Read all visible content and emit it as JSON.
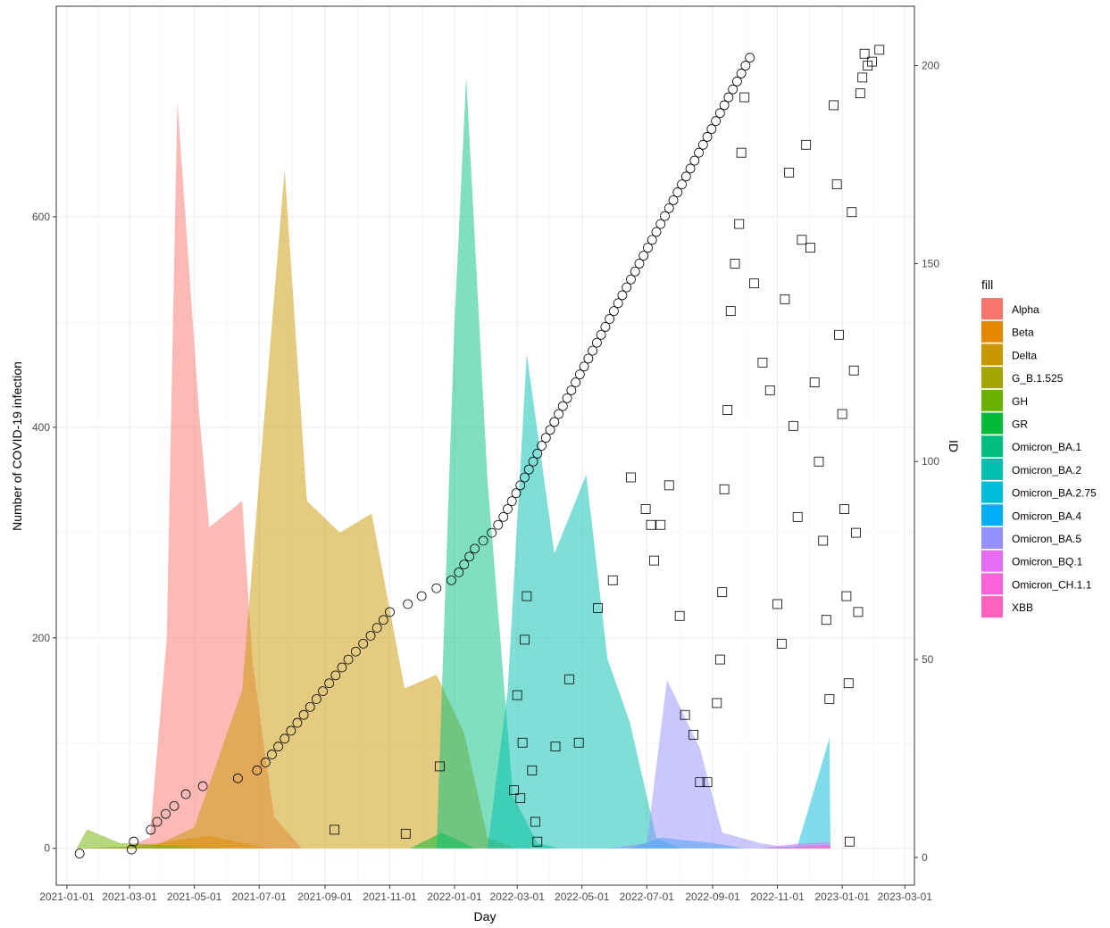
{
  "chart_data": {
    "type": "area",
    "xlabel": "Day",
    "ylabel": "Number of COVID-19 infection",
    "y2label": "ID",
    "xlim": [
      "2020-12-22",
      "2023-03-10"
    ],
    "ylim": [
      -35,
      800
    ],
    "y2lim": [
      -7,
      215
    ],
    "x_ticks": [
      "2021-01-01",
      "2021-03-01",
      "2021-05-01",
      "2021-07-01",
      "2021-09-01",
      "2021-11-01",
      "2022-01-01",
      "2022-03-01",
      "2022-05-01",
      "2022-07-01",
      "2022-09-01",
      "2022-11-01",
      "2023-01-01",
      "2023-03-01"
    ],
    "y_ticks": [
      0,
      200,
      400,
      600
    ],
    "y2_ticks": [
      0,
      50,
      100,
      150,
      200
    ],
    "grid": true,
    "legend": {
      "title": "fill",
      "position": "right"
    },
    "series": [
      {
        "name": "Alpha",
        "color": "#F8766D",
        "points": [
          [
            "2021-01-10",
            0
          ],
          [
            "2021-02-25",
            1
          ],
          [
            "2021-03-20",
            10
          ],
          [
            "2021-04-05",
            200
          ],
          [
            "2021-04-15",
            710
          ],
          [
            "2021-05-05",
            420
          ],
          [
            "2021-05-15",
            305
          ],
          [
            "2021-06-15",
            330
          ],
          [
            "2021-06-25",
            175
          ],
          [
            "2021-07-15",
            30
          ],
          [
            "2021-08-10",
            0
          ]
        ]
      },
      {
        "name": "Beta",
        "color": "#E58700",
        "points": [
          [
            "2021-01-10",
            0
          ],
          [
            "2021-03-10",
            2
          ],
          [
            "2021-04-15",
            8
          ],
          [
            "2021-05-15",
            12
          ],
          [
            "2021-06-15",
            5
          ],
          [
            "2021-07-10",
            0
          ]
        ]
      },
      {
        "name": "Delta",
        "color": "#C99800",
        "points": [
          [
            "2021-03-20",
            0
          ],
          [
            "2021-05-01",
            20
          ],
          [
            "2021-06-15",
            150
          ],
          [
            "2021-07-01",
            350
          ],
          [
            "2021-07-25",
            645
          ],
          [
            "2021-08-15",
            330
          ],
          [
            "2021-09-15",
            300
          ],
          [
            "2021-10-15",
            318
          ],
          [
            "2021-11-15",
            152
          ],
          [
            "2021-12-15",
            165
          ],
          [
            "2022-01-10",
            110
          ],
          [
            "2022-02-01",
            10
          ],
          [
            "2022-03-01",
            0
          ]
        ]
      },
      {
        "name": "G_B.1.525",
        "color": "#A3A500",
        "points": [
          [
            "2021-01-20",
            0
          ],
          [
            "2021-02-20",
            1
          ],
          [
            "2021-04-10",
            3
          ],
          [
            "2021-06-01",
            0
          ]
        ]
      },
      {
        "name": "GH",
        "color": "#6BB100",
        "points": [
          [
            "2021-01-10",
            0
          ],
          [
            "2021-01-20",
            18
          ],
          [
            "2021-02-20",
            5
          ],
          [
            "2021-03-20",
            4
          ],
          [
            "2021-05-01",
            0
          ]
        ]
      },
      {
        "name": "GR",
        "color": "#00BA38",
        "points": [
          [
            "2021-11-20",
            0
          ],
          [
            "2021-12-20",
            15
          ],
          [
            "2022-01-20",
            0
          ]
        ]
      },
      {
        "name": "Omicron_BA.1",
        "color": "#00BF7D",
        "points": [
          [
            "2021-12-15",
            0
          ],
          [
            "2022-01-01",
            500
          ],
          [
            "2022-01-12",
            733
          ],
          [
            "2022-02-01",
            350
          ],
          [
            "2022-02-25",
            50
          ],
          [
            "2022-03-20",
            5
          ],
          [
            "2022-04-10",
            0
          ]
        ]
      },
      {
        "name": "Omicron_BA.2",
        "color": "#00C0AF",
        "points": [
          [
            "2022-02-01",
            0
          ],
          [
            "2022-02-20",
            150
          ],
          [
            "2022-03-10",
            470
          ],
          [
            "2022-04-05",
            280
          ],
          [
            "2022-05-05",
            355
          ],
          [
            "2022-05-25",
            180
          ],
          [
            "2022-06-15",
            120
          ],
          [
            "2022-07-10",
            10
          ],
          [
            "2022-08-01",
            0
          ]
        ]
      },
      {
        "name": "Omicron_BA.2.75",
        "color": "#00BCD8",
        "points": [
          [
            "2022-10-20",
            0
          ],
          [
            "2022-11-20",
            3
          ],
          [
            "2022-12-20",
            105
          ],
          [
            "2022-12-21",
            0
          ]
        ]
      },
      {
        "name": "Omicron_BA.4",
        "color": "#00B0F6",
        "points": [
          [
            "2022-06-15",
            0
          ],
          [
            "2022-07-15",
            10
          ],
          [
            "2022-09-01",
            5
          ],
          [
            "2022-10-01",
            0
          ]
        ]
      },
      {
        "name": "Omicron_BA.5",
        "color": "#9590FF",
        "points": [
          [
            "2022-05-25",
            0
          ],
          [
            "2022-07-01",
            5
          ],
          [
            "2022-07-20",
            160
          ],
          [
            "2022-08-20",
            95
          ],
          [
            "2022-09-10",
            15
          ],
          [
            "2022-10-15",
            5
          ],
          [
            "2022-11-15",
            0
          ]
        ]
      },
      {
        "name": "Omicron_BQ.1",
        "color": "#E76BF3",
        "points": [
          [
            "2022-10-15",
            0
          ],
          [
            "2022-11-15",
            4
          ],
          [
            "2022-12-20",
            6
          ],
          [
            "2022-12-21",
            0
          ]
        ]
      },
      {
        "name": "Omicron_CH.1.1",
        "color": "#FA62DB",
        "points": [
          [
            "2022-11-01",
            0
          ],
          [
            "2022-12-01",
            2
          ],
          [
            "2022-12-20",
            3
          ],
          [
            "2022-12-21",
            0
          ]
        ]
      },
      {
        "name": "XBB",
        "color": "#FF62BC",
        "points": [
          [
            "2022-11-01",
            0
          ],
          [
            "2022-12-01",
            2
          ],
          [
            "2022-12-20",
            2
          ],
          [
            "2022-12-21",
            0
          ]
        ]
      }
    ],
    "cumulative_markers": {
      "shape": "circle",
      "axis": "ID",
      "points": [
        [
          "2021-01-13",
          1
        ],
        [
          "2021-03-03",
          2
        ],
        [
          "2021-03-05",
          4
        ],
        [
          "2021-03-21",
          7
        ],
        [
          "2021-03-27",
          9
        ],
        [
          "2021-04-04",
          11
        ],
        [
          "2021-04-12",
          13
        ],
        [
          "2021-04-23",
          16
        ],
        [
          "2021-05-09",
          18
        ],
        [
          "2021-06-11",
          20
        ],
        [
          "2021-06-29",
          22
        ],
        [
          "2021-07-07",
          24
        ],
        [
          "2021-07-13",
          26
        ],
        [
          "2021-07-19",
          28
        ],
        [
          "2021-07-25",
          30
        ],
        [
          "2021-07-31",
          32
        ],
        [
          "2021-08-06",
          34
        ],
        [
          "2021-08-12",
          36
        ],
        [
          "2021-08-18",
          38
        ],
        [
          "2021-08-24",
          40
        ],
        [
          "2021-08-30",
          42
        ],
        [
          "2021-09-05",
          44
        ],
        [
          "2021-09-11",
          46
        ],
        [
          "2021-09-17",
          48
        ],
        [
          "2021-09-23",
          50
        ],
        [
          "2021-09-30",
          52
        ],
        [
          "2021-10-07",
          54
        ],
        [
          "2021-10-14",
          56
        ],
        [
          "2021-10-20",
          58
        ],
        [
          "2021-10-26",
          60
        ],
        [
          "2021-11-01",
          62
        ],
        [
          "2021-11-18",
          64
        ],
        [
          "2021-12-01",
          66
        ],
        [
          "2021-12-15",
          68
        ],
        [
          "2021-12-29",
          70
        ],
        [
          "2022-01-05",
          72
        ],
        [
          "2022-01-10",
          74
        ],
        [
          "2022-01-15",
          76
        ],
        [
          "2022-01-20",
          78
        ],
        [
          "2022-01-28",
          80
        ],
        [
          "2022-02-05",
          82
        ],
        [
          "2022-02-11",
          84
        ],
        [
          "2022-02-16",
          86
        ],
        [
          "2022-02-20",
          88
        ],
        [
          "2022-02-24",
          90
        ],
        [
          "2022-02-28",
          92
        ],
        [
          "2022-03-04",
          94
        ],
        [
          "2022-03-08",
          96
        ],
        [
          "2022-03-12",
          98
        ],
        [
          "2022-03-16",
          100
        ],
        [
          "2022-03-20",
          102
        ],
        [
          "2022-03-24",
          104
        ],
        [
          "2022-03-28",
          106
        ],
        [
          "2022-04-01",
          108
        ],
        [
          "2022-04-05",
          110
        ],
        [
          "2022-04-09",
          112
        ],
        [
          "2022-04-13",
          114
        ],
        [
          "2022-04-17",
          116
        ],
        [
          "2022-04-21",
          118
        ],
        [
          "2022-04-25",
          120
        ],
        [
          "2022-04-29",
          122
        ],
        [
          "2022-05-03",
          124
        ],
        [
          "2022-05-07",
          126
        ],
        [
          "2022-05-11",
          128
        ],
        [
          "2022-05-15",
          130
        ],
        [
          "2022-05-19",
          132
        ],
        [
          "2022-05-23",
          134
        ],
        [
          "2022-05-27",
          136
        ],
        [
          "2022-05-31",
          138
        ],
        [
          "2022-06-04",
          140
        ],
        [
          "2022-06-08",
          142
        ],
        [
          "2022-06-12",
          144
        ],
        [
          "2022-06-16",
          146
        ],
        [
          "2022-06-20",
          148
        ],
        [
          "2022-06-24",
          150
        ],
        [
          "2022-06-28",
          152
        ],
        [
          "2022-07-02",
          154
        ],
        [
          "2022-07-06",
          156
        ],
        [
          "2022-07-10",
          158
        ],
        [
          "2022-07-14",
          160
        ],
        [
          "2022-07-18",
          162
        ],
        [
          "2022-07-22",
          164
        ],
        [
          "2022-07-26",
          166
        ],
        [
          "2022-07-30",
          168
        ],
        [
          "2022-08-03",
          170
        ],
        [
          "2022-08-07",
          172
        ],
        [
          "2022-08-11",
          174
        ],
        [
          "2022-08-15",
          176
        ],
        [
          "2022-08-19",
          178
        ],
        [
          "2022-08-23",
          180
        ],
        [
          "2022-08-27",
          182
        ],
        [
          "2022-08-31",
          184
        ],
        [
          "2022-09-04",
          186
        ],
        [
          "2022-09-08",
          188
        ],
        [
          "2022-09-12",
          190
        ],
        [
          "2022-09-16",
          192
        ],
        [
          "2022-09-20",
          194
        ],
        [
          "2022-09-24",
          196
        ],
        [
          "2022-09-28",
          198
        ],
        [
          "2022-10-02",
          200
        ],
        [
          "2022-10-06",
          202
        ]
      ]
    },
    "scatter_markers": {
      "shape": "square",
      "axis": "ID",
      "points": [
        [
          "2021-09-10",
          7
        ],
        [
          "2021-11-16",
          6
        ],
        [
          "2021-12-18",
          23
        ],
        [
          "2022-02-26",
          17
        ],
        [
          "2022-03-01",
          41
        ],
        [
          "2022-03-04",
          15
        ],
        [
          "2022-03-06",
          29
        ],
        [
          "2022-03-08",
          55
        ],
        [
          "2022-03-10",
          66
        ],
        [
          "2022-03-15",
          22
        ],
        [
          "2022-03-18",
          9
        ],
        [
          "2022-03-20",
          4
        ],
        [
          "2022-04-06",
          28
        ],
        [
          "2022-04-19",
          45
        ],
        [
          "2022-04-28",
          29
        ],
        [
          "2022-05-16",
          63
        ],
        [
          "2022-05-30",
          70
        ],
        [
          "2022-06-16",
          96
        ],
        [
          "2022-06-30",
          88
        ],
        [
          "2022-07-05",
          84
        ],
        [
          "2022-07-08",
          75
        ],
        [
          "2022-07-14",
          84
        ],
        [
          "2022-07-22",
          94
        ],
        [
          "2022-08-01",
          61
        ],
        [
          "2022-08-06",
          36
        ],
        [
          "2022-08-14",
          31
        ],
        [
          "2022-08-20",
          19
        ],
        [
          "2022-08-27",
          19
        ],
        [
          "2022-09-05",
          39
        ],
        [
          "2022-09-08",
          50
        ],
        [
          "2022-09-10",
          67
        ],
        [
          "2022-09-12",
          93
        ],
        [
          "2022-09-15",
          113
        ],
        [
          "2022-09-18",
          138
        ],
        [
          "2022-09-22",
          150
        ],
        [
          "2022-09-26",
          160
        ],
        [
          "2022-09-28",
          178
        ],
        [
          "2022-10-01",
          192
        ],
        [
          "2022-10-10",
          145
        ],
        [
          "2022-10-18",
          125
        ],
        [
          "2022-10-25",
          118
        ],
        [
          "2022-11-01",
          64
        ],
        [
          "2022-11-05",
          54
        ],
        [
          "2022-11-08",
          141
        ],
        [
          "2022-11-12",
          173
        ],
        [
          "2022-11-16",
          109
        ],
        [
          "2022-11-20",
          86
        ],
        [
          "2022-11-24",
          156
        ],
        [
          "2022-11-28",
          180
        ],
        [
          "2022-12-02",
          154
        ],
        [
          "2022-12-06",
          120
        ],
        [
          "2022-12-10",
          100
        ],
        [
          "2022-12-14",
          80
        ],
        [
          "2022-12-17",
          60
        ],
        [
          "2022-12-20",
          40
        ],
        [
          "2022-12-24",
          190
        ],
        [
          "2022-12-27",
          170
        ],
        [
          "2022-12-29",
          132
        ],
        [
          "2023-01-01",
          112
        ],
        [
          "2023-01-03",
          88
        ],
        [
          "2023-01-05",
          66
        ],
        [
          "2023-01-07",
          44
        ],
        [
          "2023-01-08",
          4
        ],
        [
          "2023-01-10",
          163
        ],
        [
          "2023-01-12",
          123
        ],
        [
          "2023-01-14",
          82
        ],
        [
          "2023-01-16",
          62
        ],
        [
          "2023-01-18",
          193
        ],
        [
          "2023-01-20",
          197
        ],
        [
          "2023-01-22",
          203
        ],
        [
          "2023-01-25",
          200
        ],
        [
          "2023-01-29",
          201
        ],
        [
          "2023-02-05",
          204
        ]
      ]
    }
  }
}
